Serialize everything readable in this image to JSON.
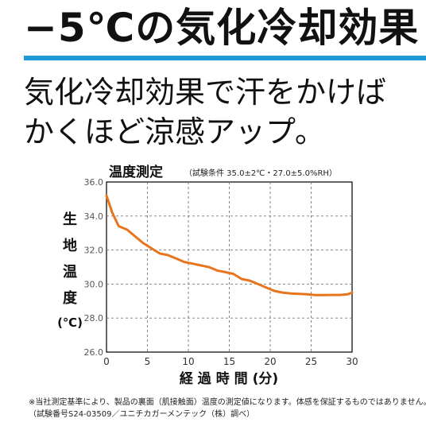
{
  "header": {
    "headline": "−5℃の気化冷却効果",
    "accent_color": "#1f9ad6"
  },
  "lead": {
    "line1": "気化冷却効果で汗をかけば",
    "line2": "かくほど涼感アップ。"
  },
  "chart_data": {
    "type": "line",
    "title": "温度測定",
    "subtitle": "（試験条件 35.0±2℃・27.0±5.0%RH）",
    "xlabel": "経 過 時 間 (分)",
    "ylabel": [
      "生",
      "地",
      "温",
      "度",
      "(℃)"
    ],
    "xlim": [
      0,
      30
    ],
    "ylim": [
      26.0,
      36.0
    ],
    "x_ticks": [
      "0",
      "5",
      "10",
      "15",
      "20",
      "25",
      "30"
    ],
    "y_ticks": [
      "36.0",
      "34.0",
      "32.0",
      "30.0",
      "28.0",
      "26.0"
    ],
    "grid": true,
    "line_color": "#e8741e",
    "series": [
      {
        "x": [
          0,
          0.7,
          1.5,
          2.5,
          3.5,
          4.5,
          5.5,
          6.5,
          7.5,
          8.5,
          9.5,
          10.5,
          11.5,
          12.5,
          13.5,
          14.5,
          15.5,
          16.5,
          17.5,
          18.5,
          19.5,
          20.5,
          21.5,
          22.5,
          23.5,
          24.5,
          25.5,
          26.5,
          27.5,
          28.5,
          29.5,
          30
        ],
        "values": [
          35.2,
          34.2,
          33.4,
          33.2,
          32.8,
          32.4,
          32.1,
          31.8,
          31.7,
          31.5,
          31.3,
          31.2,
          31.1,
          31.0,
          30.8,
          30.7,
          30.6,
          30.3,
          30.2,
          30.0,
          29.8,
          29.6,
          29.5,
          29.45,
          29.42,
          29.4,
          29.35,
          29.35,
          29.36,
          29.36,
          29.4,
          29.5
        ]
      }
    ]
  },
  "footnote": {
    "line1": "※当社測定基準により、製品の裏面（肌接触面）温度の測定値になります。体感を保証するものではありません。",
    "line2": "（試験番号S24-03509／ユニチカガーメンテック（株）調べ）"
  }
}
